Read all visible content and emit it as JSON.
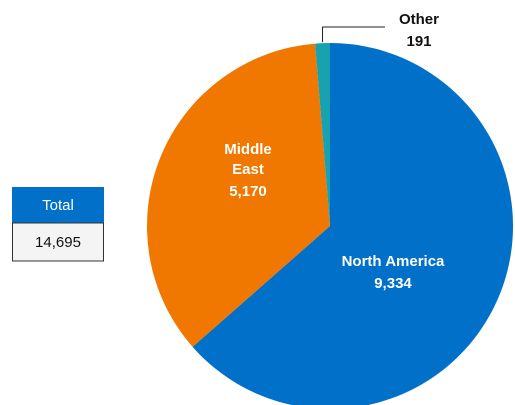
{
  "chart_data": {
    "type": "pie",
    "categories": [
      "North America",
      "Middle East",
      "Other"
    ],
    "values": [
      9334,
      5170,
      191
    ],
    "value_labels": [
      "9,334",
      "5,170",
      "191"
    ],
    "colors": [
      "#0070c8",
      "#f07800",
      "#18a2b0"
    ],
    "total": {
      "label": "Total",
      "value": 14695,
      "value_label": "14,695"
    }
  }
}
